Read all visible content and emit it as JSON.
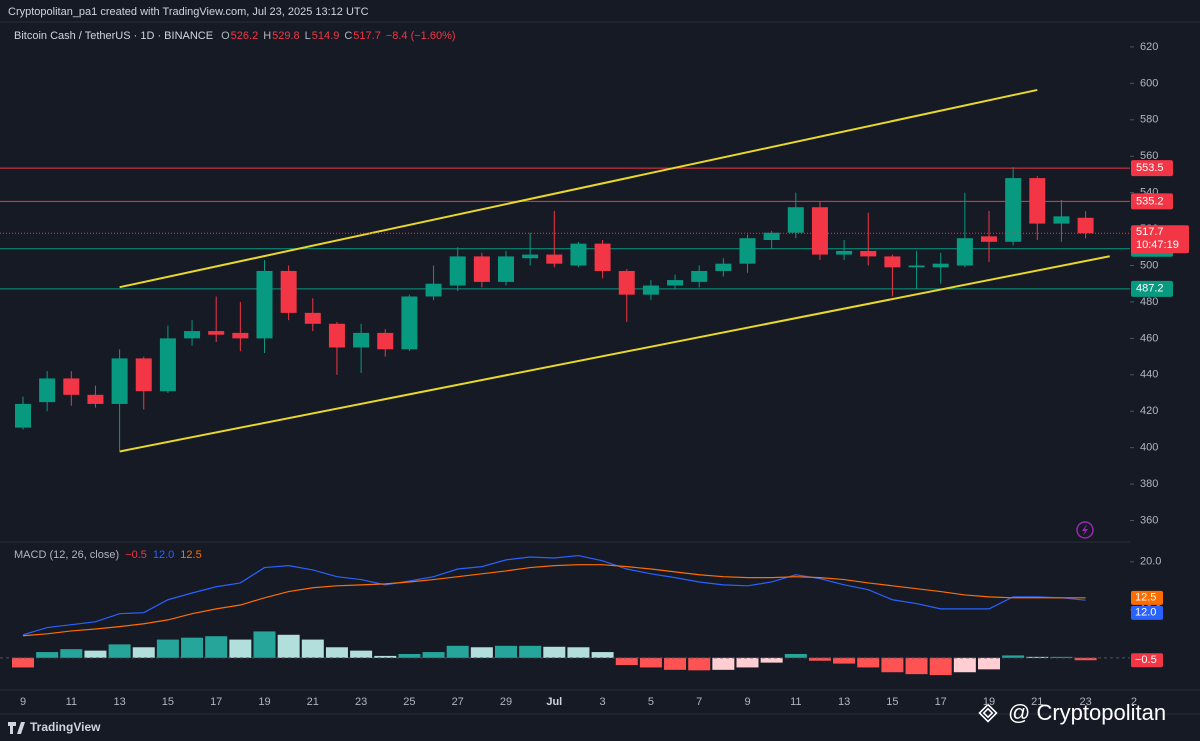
{
  "header": "Cryptopolitan_pa1 created with TradingView.com, Jul 23, 2025 13:12 UTC",
  "footer": {
    "logo": "TradingView",
    "watermark": "@ Cryptopolitan"
  },
  "chart_data": [
    {
      "type": "candlestick",
      "title": "Bitcoin Cash / TetherUS · 1D · BINANCE",
      "legend": [
        {
          "key": "O",
          "text": "526.2"
        },
        {
          "key": "H",
          "text": "529.8"
        },
        {
          "key": "L",
          "text": "514.9"
        },
        {
          "key": "C",
          "text": "517.7"
        }
      ],
      "change": "−8.4 (−1.60%)",
      "categories": [
        "9",
        null,
        "11",
        null,
        "13",
        null,
        "15",
        null,
        "17",
        null,
        "19",
        null,
        "21",
        null,
        "23",
        null,
        "25",
        null,
        "27",
        null,
        "29",
        null,
        "Jul",
        null,
        "3",
        null,
        "5",
        null,
        "7",
        null,
        "9",
        null,
        "11",
        null,
        "13",
        null,
        "15",
        null,
        "17",
        null,
        "19",
        null,
        "21",
        null,
        "23"
      ],
      "future_categories": [
        "2"
      ],
      "open": [
        411,
        425,
        438,
        429,
        424,
        449,
        431,
        460,
        464,
        463,
        460,
        497,
        474,
        468,
        455,
        463,
        454,
        483,
        489,
        505,
        491,
        504,
        506,
        500,
        512,
        497,
        484,
        489,
        491,
        497,
        501,
        514,
        518,
        532,
        506,
        508,
        505,
        499,
        499,
        500,
        516,
        513,
        548,
        523,
        526.2
      ],
      "high": [
        428,
        442,
        442,
        434,
        454,
        450,
        467,
        470,
        483,
        480,
        503,
        500,
        482,
        469,
        468,
        465,
        484,
        500,
        510,
        507,
        508,
        518,
        530,
        513,
        514,
        498,
        492,
        495,
        500,
        504,
        517,
        519,
        540,
        535,
        514,
        529,
        506,
        508,
        507,
        540,
        530,
        554,
        549,
        536,
        529.8
      ],
      "low": [
        410,
        420,
        423,
        422,
        398,
        421,
        430,
        456,
        458,
        453,
        452,
        470,
        464,
        440,
        441,
        450,
        453,
        481,
        486,
        488,
        489,
        500,
        499,
        499,
        493,
        469,
        481,
        487,
        488,
        494,
        496,
        509,
        515,
        503,
        503,
        500,
        483,
        487,
        490,
        499,
        502,
        511,
        514,
        513,
        514.9
      ],
      "close": [
        424,
        438,
        429,
        424,
        449,
        431,
        460,
        464,
        462,
        460,
        497,
        474,
        468,
        455,
        463,
        454,
        483,
        490,
        505,
        491,
        505,
        506,
        501,
        512,
        497,
        484,
        489,
        492,
        497,
        501,
        515,
        518,
        532,
        506,
        508,
        505,
        499,
        500,
        501,
        515,
        513,
        548,
        523,
        527,
        517.7
      ],
      "up_color": "#089981",
      "down_color": "#f23645",
      "ylim": [
        349.3,
        629.3
      ],
      "yticks": [
        360,
        380,
        400,
        420,
        440,
        460,
        480,
        500,
        520,
        540,
        560,
        580,
        600,
        620
      ],
      "levels": [
        {
          "value": 553.5,
          "color": "#f23645"
        },
        {
          "value": 535.2,
          "color": "#f23645"
        },
        {
          "value": 509.2,
          "color": "#089981"
        },
        {
          "value": 487.2,
          "color": "#089981"
        }
      ],
      "last_price": {
        "value": 517.7,
        "countdown": "10:47:19",
        "color": "#f23645"
      },
      "trendlines": [
        {
          "color": "#e8d82c",
          "points": [
            [
              4,
              488.1
            ],
            [
              42,
              596.4
            ]
          ]
        },
        {
          "color": "#e8d82c",
          "points": [
            [
              4,
              397.9
            ],
            [
              45,
              505.1
            ]
          ]
        }
      ]
    },
    {
      "type": "macd",
      "title": "MACD (12, 26, close)",
      "ylim": [
        -6.7,
        23.5
      ],
      "yticks": [
        {
          "value": 10,
          "label": "10.0"
        },
        {
          "value": 20,
          "label": "20.0"
        }
      ],
      "series": [
        {
          "name": "Histogram",
          "kind": "histogram",
          "colors": [
            "#26a69a",
            "#b2dfdb",
            "#ff5252",
            "#ffcdd2"
          ],
          "values": [
            -2,
            1.2,
            1.8,
            1.5,
            2.8,
            2.2,
            3.8,
            4.2,
            4.5,
            3.8,
            5.5,
            4.8,
            3.8,
            2.2,
            1.5,
            0.4,
            0.8,
            1.2,
            2.5,
            2.2,
            2.5,
            2.5,
            2.3,
            2.2,
            1.2,
            -1.5,
            -2,
            -2.5,
            -2.6,
            -2.5,
            -2,
            -1,
            0.8,
            -0.6,
            -1.2,
            -2,
            -3,
            -3.4,
            -3.6,
            -3,
            -2.4,
            0.5,
            0.2,
            0.2,
            -0.5
          ],
          "last_label": "−0.5",
          "label_color": "#f23645"
        },
        {
          "name": "MACD",
          "kind": "line",
          "color": "#2962ff",
          "values": [
            4.8,
            6.3,
            6.9,
            7.5,
            9.2,
            9.4,
            12.1,
            13.5,
            14.8,
            15.6,
            18.8,
            19.2,
            18.3,
            16.9,
            16.3,
            15.2,
            16.0,
            16.9,
            18.5,
            19.0,
            20.4,
            21.0,
            20.8,
            21.3,
            20.2,
            18.5,
            17.5,
            16.7,
            15.8,
            15.2,
            15.0,
            15.8,
            17.3,
            16.5,
            15.2,
            14.2,
            12.1,
            11.3,
            10.2,
            10.2,
            10.2,
            12.7,
            12.7,
            12.5,
            12.0
          ],
          "last_label": "12.0"
        },
        {
          "name": "Signal",
          "kind": "line",
          "color": "#ff6d00",
          "values": [
            4.6,
            5.0,
            5.6,
            6.0,
            6.5,
            7.1,
            7.9,
            9.2,
            10.2,
            11.0,
            12.5,
            13.8,
            14.6,
            15.0,
            15.2,
            15.4,
            15.8,
            16.3,
            16.9,
            17.5,
            18.1,
            18.8,
            19.2,
            19.4,
            19.4,
            19.0,
            18.5,
            17.9,
            17.3,
            16.9,
            16.7,
            16.7,
            16.9,
            16.7,
            16.3,
            15.6,
            15.0,
            14.4,
            13.8,
            13.1,
            12.7,
            12.5,
            12.5,
            12.5,
            12.5
          ],
          "last_label": "12.5"
        }
      ]
    }
  ]
}
